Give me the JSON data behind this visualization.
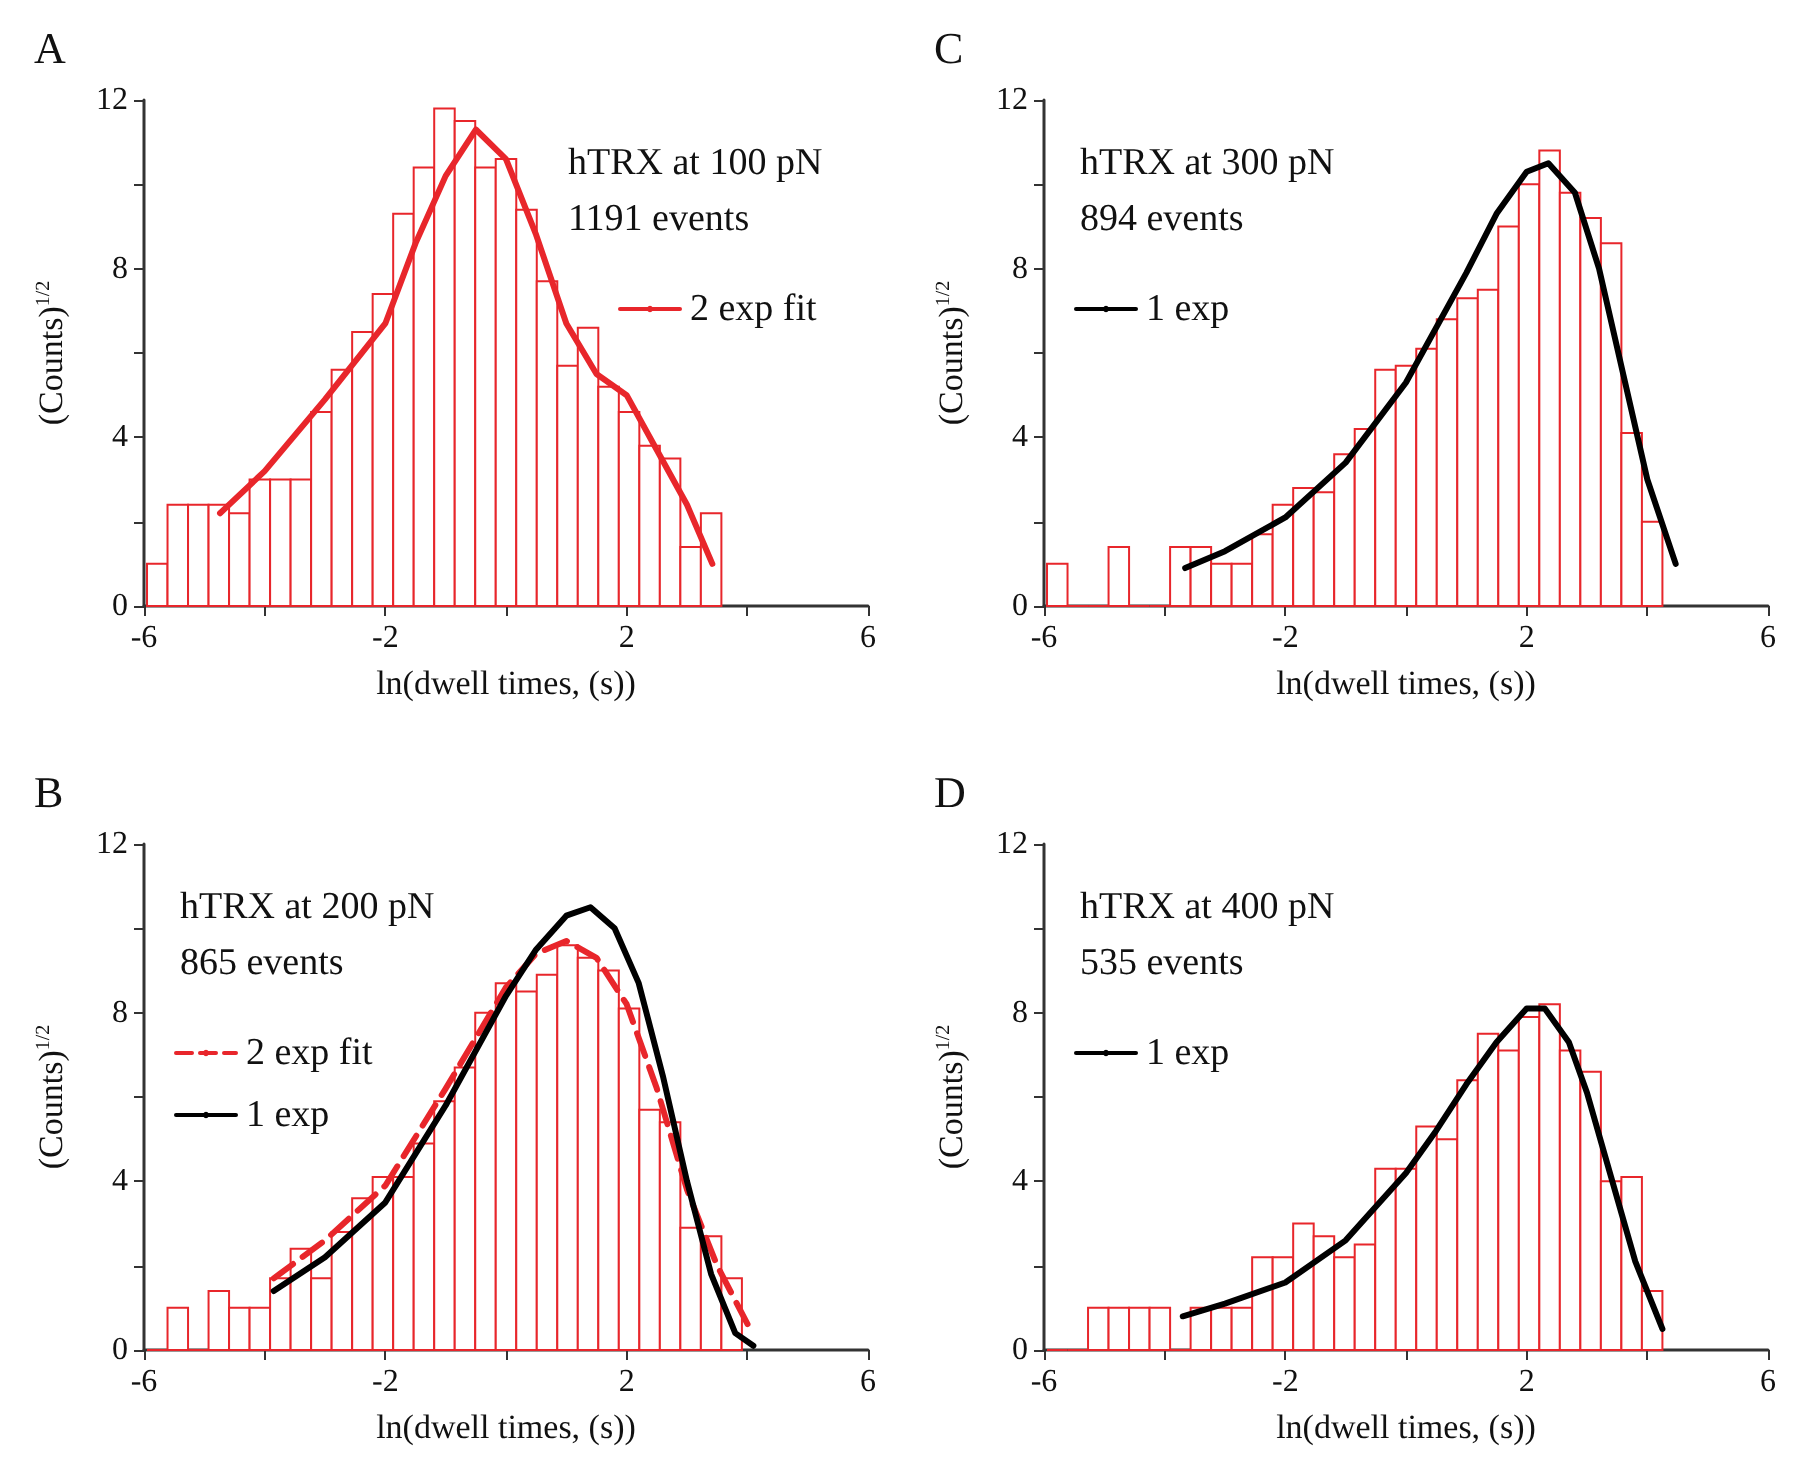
{
  "chart_data": [
    {
      "type": "histogram",
      "title": "A",
      "xlabel": "ln(dwell times, (s))",
      "ylabel": "(Counts)$^{1/2}$",
      "annotations": [
        "hTRX at 100 pN",
        "1191 events"
      ],
      "legend": "right",
      "color": "#e8262b",
      "bins": [
        -5.95,
        -5.61,
        -5.27,
        -4.93,
        -4.59,
        -4.25,
        -3.91,
        -3.57,
        -3.23,
        -2.89,
        -2.55,
        -2.21,
        -1.87,
        -1.53,
        -1.19,
        -0.85,
        -0.51,
        -0.17,
        0.17,
        0.51,
        0.85,
        1.19,
        1.53,
        1.87,
        2.21,
        2.55,
        2.89,
        3.23,
        3.57
      ],
      "values": [
        1.0,
        2.4,
        2.4,
        2.4,
        2.2,
        3.0,
        3.0,
        3.0,
        4.6,
        5.6,
        6.5,
        7.4,
        9.3,
        10.4,
        11.8,
        11.5,
        10.4,
        10.6,
        9.4,
        7.7,
        5.7,
        6.6,
        5.2,
        4.6,
        3.8,
        3.5,
        1.4,
        2.2
      ],
      "series": [
        {
          "type": "line",
          "name": "2 exp fit",
          "color": "#e8262b",
          "line_style": "solid",
          "x": [
            -4.74,
            -4,
            -3,
            -2,
            -1.5,
            -1,
            -0.5,
            0,
            0.5,
            1,
            1.5,
            2,
            2.5,
            3,
            3.42
          ],
          "values": [
            2.2,
            3.2,
            4.9,
            6.7,
            8.6,
            10.2,
            11.3,
            10.6,
            8.8,
            6.7,
            5.5,
            5.0,
            3.7,
            2.4,
            1.0
          ]
        }
      ],
      "xlim": [
        -6,
        6
      ],
      "xticks": [
        -6,
        {
          "value": -4,
          "label": null
        },
        -2,
        {
          "value": 0,
          "label": null
        },
        2,
        {
          "value": 4,
          "label": null
        },
        6
      ],
      "ylim": [
        0,
        12
      ],
      "yticks": [
        0,
        {
          "value": 2,
          "label": null
        },
        4,
        {
          "value": 6,
          "label": null
        },
        8,
        {
          "value": 10,
          "label": null
        },
        12
      ],
      "grid": false,
      "marker": "none"
    },
    {
      "type": "histogram",
      "title": "C",
      "xlabel": "ln(dwell times, (s))",
      "ylabel": "(Counts)$^{1/2}$",
      "annotations": [
        "hTRX at 300 pN",
        "894 events"
      ],
      "legend": "left",
      "color": "#e8262b",
      "bins": [
        -5.95,
        -5.61,
        -5.27,
        -4.93,
        -4.59,
        -4.25,
        -3.91,
        -3.57,
        -3.23,
        -2.89,
        -2.55,
        -2.21,
        -1.87,
        -1.53,
        -1.19,
        -0.85,
        -0.51,
        -0.17,
        0.17,
        0.51,
        0.85,
        1.19,
        1.53,
        1.87,
        2.21,
        2.55,
        2.89,
        3.23,
        3.57,
        3.91,
        4.25
      ],
      "values": [
        1.0,
        0,
        0,
        1.4,
        0,
        0,
        1.4,
        1.4,
        1.0,
        1.0,
        1.7,
        2.4,
        2.8,
        2.7,
        3.6,
        4.2,
        5.6,
        5.7,
        6.1,
        6.8,
        7.3,
        7.5,
        9.0,
        10.0,
        10.8,
        9.8,
        9.2,
        8.6,
        4.1,
        2.0
      ],
      "series": [
        {
          "type": "line",
          "name": "1 exp",
          "color": "#000000",
          "line_style": "solid",
          "x": [
            -3.66,
            -3,
            -2,
            -1,
            0,
            1,
            1.5,
            2,
            2.36,
            2.8,
            3.2,
            3.6,
            4,
            4.47
          ],
          "values": [
            0.9,
            1.3,
            2.1,
            3.4,
            5.3,
            7.9,
            9.3,
            10.3,
            10.5,
            9.8,
            8.0,
            5.5,
            3.0,
            1.0
          ]
        }
      ],
      "xlim": [
        -6,
        6
      ],
      "xticks": [
        -6,
        {
          "value": -4,
          "label": null
        },
        -2,
        {
          "value": 0,
          "label": null
        },
        2,
        {
          "value": 4,
          "label": null
        },
        6
      ],
      "ylim": [
        0,
        12
      ],
      "yticks": [
        0,
        {
          "value": 2,
          "label": null
        },
        4,
        {
          "value": 6,
          "label": null
        },
        8,
        {
          "value": 10,
          "label": null
        },
        12
      ],
      "grid": false,
      "marker": "none"
    },
    {
      "type": "histogram",
      "title": "B",
      "xlabel": "ln(dwell times, (s))",
      "ylabel": "(Counts)$^{1/2}$",
      "annotations": [
        "hTRX at 200 pN",
        "865 events"
      ],
      "legend": "left",
      "color": "#e8262b",
      "bins": [
        -5.95,
        -5.61,
        -5.27,
        -4.93,
        -4.59,
        -4.25,
        -3.91,
        -3.57,
        -3.23,
        -2.89,
        -2.55,
        -2.21,
        -1.87,
        -1.53,
        -1.19,
        -0.85,
        -0.51,
        -0.17,
        0.17,
        0.51,
        0.85,
        1.19,
        1.53,
        1.87,
        2.21,
        2.55,
        2.89,
        3.23,
        3.57,
        3.91
      ],
      "values": [
        0,
        1.0,
        0,
        1.4,
        1.0,
        1.0,
        1.7,
        2.4,
        1.7,
        2.8,
        3.6,
        4.1,
        4.1,
        4.9,
        5.9,
        6.7,
        8.0,
        8.7,
        8.5,
        8.9,
        9.6,
        9.3,
        9.0,
        8.1,
        5.7,
        5.4,
        2.9,
        2.7,
        1.7
      ],
      "series": [
        {
          "type": "line",
          "name": "2 exp fit",
          "color": "#e8262b",
          "line_style": "dashed",
          "x": [
            -3.85,
            -3,
            -2,
            -1,
            0,
            0.5,
            1,
            1.5,
            2,
            2.5,
            3,
            3.5,
            4.08
          ],
          "values": [
            1.7,
            2.6,
            3.9,
            6.2,
            8.6,
            9.4,
            9.7,
            9.3,
            8.2,
            6.2,
            3.8,
            2.0,
            0.4
          ]
        },
        {
          "type": "line",
          "name": "1 exp",
          "color": "#000000",
          "line_style": "solid",
          "x": [
            -3.85,
            -3,
            -2,
            -1,
            0,
            0.5,
            1,
            1.4,
            1.8,
            2.2,
            2.6,
            3,
            3.4,
            3.8,
            4.1
          ],
          "values": [
            1.4,
            2.2,
            3.5,
            5.8,
            8.4,
            9.5,
            10.3,
            10.5,
            10.0,
            8.7,
            6.5,
            4.0,
            1.8,
            0.4,
            0.1
          ]
        }
      ],
      "xlim": [
        -6,
        6
      ],
      "xticks": [
        -6,
        {
          "value": -4,
          "label": null
        },
        -2,
        {
          "value": 0,
          "label": null
        },
        2,
        {
          "value": 4,
          "label": null
        },
        6
      ],
      "ylim": [
        0,
        12
      ],
      "yticks": [
        0,
        {
          "value": 2,
          "label": null
        },
        4,
        {
          "value": 6,
          "label": null
        },
        8,
        {
          "value": 10,
          "label": null
        },
        12
      ],
      "grid": false,
      "marker": "none"
    },
    {
      "type": "histogram",
      "title": "D",
      "xlabel": "ln(dwell times, (s))",
      "ylabel": "(Counts)$^{1/2}$",
      "annotations": [
        "hTRX at 400 pN",
        "535 events"
      ],
      "legend": "left",
      "color": "#e8262b",
      "bins": [
        -5.95,
        -5.61,
        -5.27,
        -4.93,
        -4.59,
        -4.25,
        -3.91,
        -3.57,
        -3.23,
        -2.89,
        -2.55,
        -2.21,
        -1.87,
        -1.53,
        -1.19,
        -0.85,
        -0.51,
        -0.17,
        0.17,
        0.51,
        0.85,
        1.19,
        1.53,
        1.87,
        2.21,
        2.55,
        2.89,
        3.23,
        3.57,
        3.91,
        4.25
      ],
      "values": [
        0,
        0,
        1.0,
        1.0,
        1.0,
        1.0,
        0,
        1.0,
        1.0,
        1.0,
        2.2,
        2.2,
        3.0,
        2.7,
        2.2,
        2.5,
        4.3,
        4.3,
        5.3,
        5.0,
        6.4,
        7.5,
        7.1,
        7.9,
        8.2,
        7.1,
        6.6,
        4.0,
        4.1,
        1.4
      ],
      "series": [
        {
          "type": "line",
          "name": "1 exp",
          "color": "#000000",
          "line_style": "solid",
          "x": [
            -3.7,
            -3,
            -2,
            -1,
            0,
            0.5,
            1,
            1.5,
            2,
            2.3,
            2.7,
            3,
            3.4,
            3.8,
            4.25
          ],
          "values": [
            0.8,
            1.1,
            1.6,
            2.6,
            4.2,
            5.2,
            6.3,
            7.3,
            8.1,
            8.1,
            7.3,
            6.1,
            4.1,
            2.1,
            0.5
          ]
        }
      ],
      "xlim": [
        -6,
        6
      ],
      "xticks": [
        -6,
        {
          "value": -4,
          "label": null
        },
        -2,
        {
          "value": 0,
          "label": null
        },
        2,
        {
          "value": 4,
          "label": null
        },
        6
      ],
      "ylim": [
        0,
        12
      ],
      "yticks": [
        0,
        {
          "value": 2,
          "label": null
        },
        4,
        {
          "value": 6,
          "label": null
        },
        8,
        {
          "value": 10,
          "label": null
        },
        12
      ],
      "grid": false,
      "marker": "none"
    }
  ]
}
